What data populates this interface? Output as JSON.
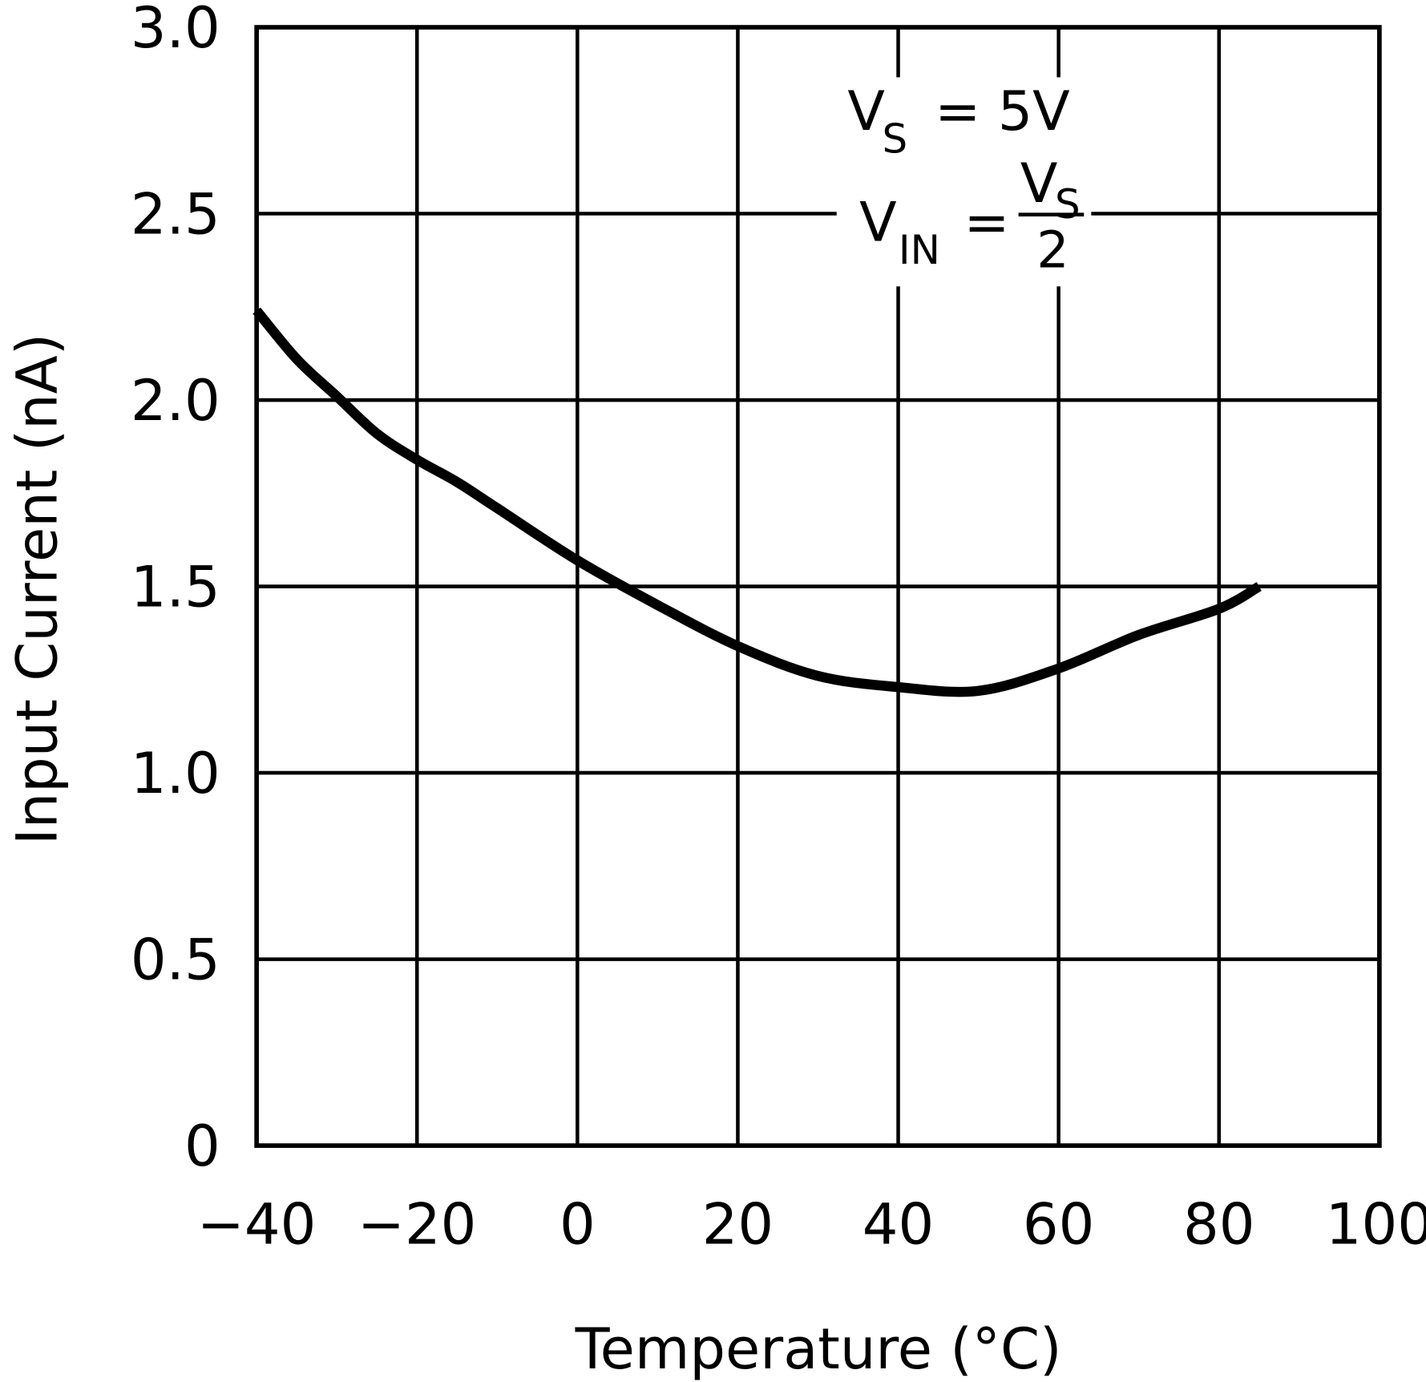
{
  "chart_data": {
    "type": "line",
    "title": "",
    "xlabel": "Temperature (°C)",
    "ylabel": "Input Current (nA)",
    "xlim": [
      -40,
      100
    ],
    "ylim": [
      0,
      3.0
    ],
    "grid": true,
    "xticks": [
      "-40",
      "-20",
      "0",
      "20",
      "40",
      "60",
      "80",
      "100"
    ],
    "yticks": [
      "0",
      "0.5",
      "1.0",
      "1.5",
      "2.0",
      "2.5",
      "3.0"
    ],
    "annotation": {
      "line1": {
        "main": "V",
        "sub": "S",
        "rest": "= 5V"
      },
      "line2": {
        "main": "V",
        "sub": "IN",
        "eq": "=",
        "num_main": "V",
        "num_sub": "S",
        "den": "2"
      }
    },
    "series": [
      {
        "color": "#000000",
        "x": [
          -40,
          -35,
          -30,
          -25,
          -20,
          -15,
          -10,
          0,
          10,
          20,
          30,
          40,
          50,
          60,
          70,
          80,
          85
        ],
        "y": [
          2.24,
          2.11,
          2.01,
          1.91,
          1.84,
          1.78,
          1.71,
          1.57,
          1.45,
          1.34,
          1.26,
          1.23,
          1.22,
          1.28,
          1.37,
          1.44,
          1.5
        ]
      }
    ]
  }
}
